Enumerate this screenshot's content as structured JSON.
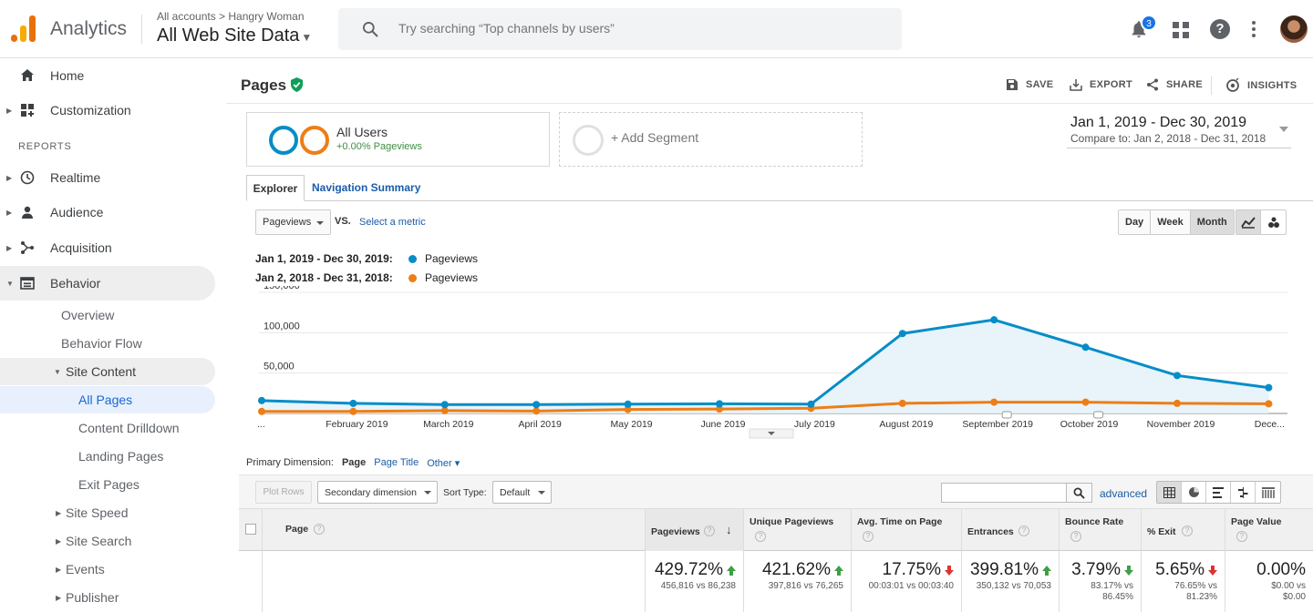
{
  "topbar": {
    "product": "Analytics",
    "breadcrumb": "All accounts > Hangry Woman",
    "view": "All Web Site Data",
    "search_placeholder": "Try searching “Top channels by users”",
    "notifications": "3"
  },
  "sidebar": {
    "home": "Home",
    "customization": "Customization",
    "reports_label": "REPORTS",
    "realtime": "Realtime",
    "audience": "Audience",
    "acquisition": "Acquisition",
    "behavior": "Behavior",
    "overview": "Overview",
    "behavior_flow": "Behavior Flow",
    "site_content": "Site Content",
    "all_pages": "All Pages",
    "content_drilldown": "Content Drilldown",
    "landing_pages": "Landing Pages",
    "exit_pages": "Exit Pages",
    "site_speed": "Site Speed",
    "site_search": "Site Search",
    "events": "Events",
    "publisher": "Publisher"
  },
  "header": {
    "title": "Pages",
    "save": "SAVE",
    "export": "EXPORT",
    "share": "SHARE",
    "insights": "INSIGHTS"
  },
  "segments": {
    "all_users": "All Users",
    "all_users_sub": "+0.00% Pageviews",
    "add": "+ Add Segment"
  },
  "date": {
    "range": "Jan 1, 2019 - Dec 30, 2019",
    "compare_label": "Compare to:",
    "compare_range": "Jan 2, 2018 - Dec 31, 2018"
  },
  "tabs": {
    "explorer": "Explorer",
    "nav_summary": "Navigation Summary"
  },
  "chart_controls": {
    "metric": "Pageviews",
    "vs": "VS.",
    "select_metric": "Select a metric",
    "day": "Day",
    "week": "Week",
    "month": "Month"
  },
  "legend": {
    "period1": "Jan 1, 2019 - Dec 30, 2019:",
    "period2": "Jan 2, 2018 - Dec 31, 2018:",
    "metric1": "Pageviews",
    "metric2": "Pageviews"
  },
  "colors": {
    "series_current": "#058dc7",
    "series_previous": "#ed7e17",
    "area_fill": "#e6f2fa"
  },
  "chart_data": {
    "type": "line",
    "x": [
      "...",
      "February 2019",
      "March 2019",
      "April 2019",
      "May 2019",
      "June 2019",
      "July 2019",
      "August 2019",
      "September 2019",
      "October 2019",
      "November 2019",
      "Dece..."
    ],
    "series": [
      {
        "name": "Pageviews",
        "period": "Jan 1, 2019 - Dec 30, 2019",
        "values": [
          16000,
          12500,
          11000,
          11000,
          11500,
          12000,
          11500,
          99000,
          116000,
          82000,
          47000,
          32000
        ]
      },
      {
        "name": "Pageviews",
        "period": "Jan 2, 2018 - Dec 31, 2018",
        "values": [
          2500,
          2500,
          3500,
          3000,
          5000,
          5500,
          6500,
          12500,
          14000,
          14000,
          12500,
          12000
        ]
      }
    ],
    "y_ticks": [
      "150,000",
      "100,000",
      "50,000"
    ],
    "ylim": [
      0,
      150000
    ],
    "grid": true,
    "area_under_current": true
  },
  "primary_dimension": {
    "label": "Primary Dimension:",
    "current": "Page",
    "page_title": "Page Title",
    "other": "Other ▾"
  },
  "toolbar": {
    "plot_rows": "Plot Rows",
    "secondary": "Secondary dimension",
    "sort_label": "Sort Type:",
    "sort_value": "Default",
    "advanced": "advanced"
  },
  "table": {
    "columns": {
      "page": "Page",
      "pageviews": "Pageviews",
      "unique": "Unique Pageviews",
      "avg_time": "Avg. Time on Page",
      "entrances": "Entrances",
      "bounce": "Bounce Rate",
      "exit": "% Exit",
      "value": "Page Value"
    },
    "totals": {
      "pageviews": {
        "pct": "429.72%",
        "cmp": "456,816 vs 86,238"
      },
      "unique": {
        "pct": "421.62%",
        "cmp": "397,816 vs 76,265"
      },
      "avg_time": {
        "pct": "17.75%",
        "cmp": "00:03:01 vs 00:03:40"
      },
      "entrances": {
        "pct": "399.81%",
        "cmp": "350,132 vs 70,053"
      },
      "bounce": {
        "pct": "3.79%",
        "cmp1": "83.17% vs",
        "cmp2": "86.45%"
      },
      "exit": {
        "pct": "5.65%",
        "cmp1": "76.65% vs",
        "cmp2": "81.23%"
      },
      "value": {
        "pct": "0.00%",
        "cmp1": "$0.00 vs",
        "cmp2": "$0.00"
      }
    }
  }
}
